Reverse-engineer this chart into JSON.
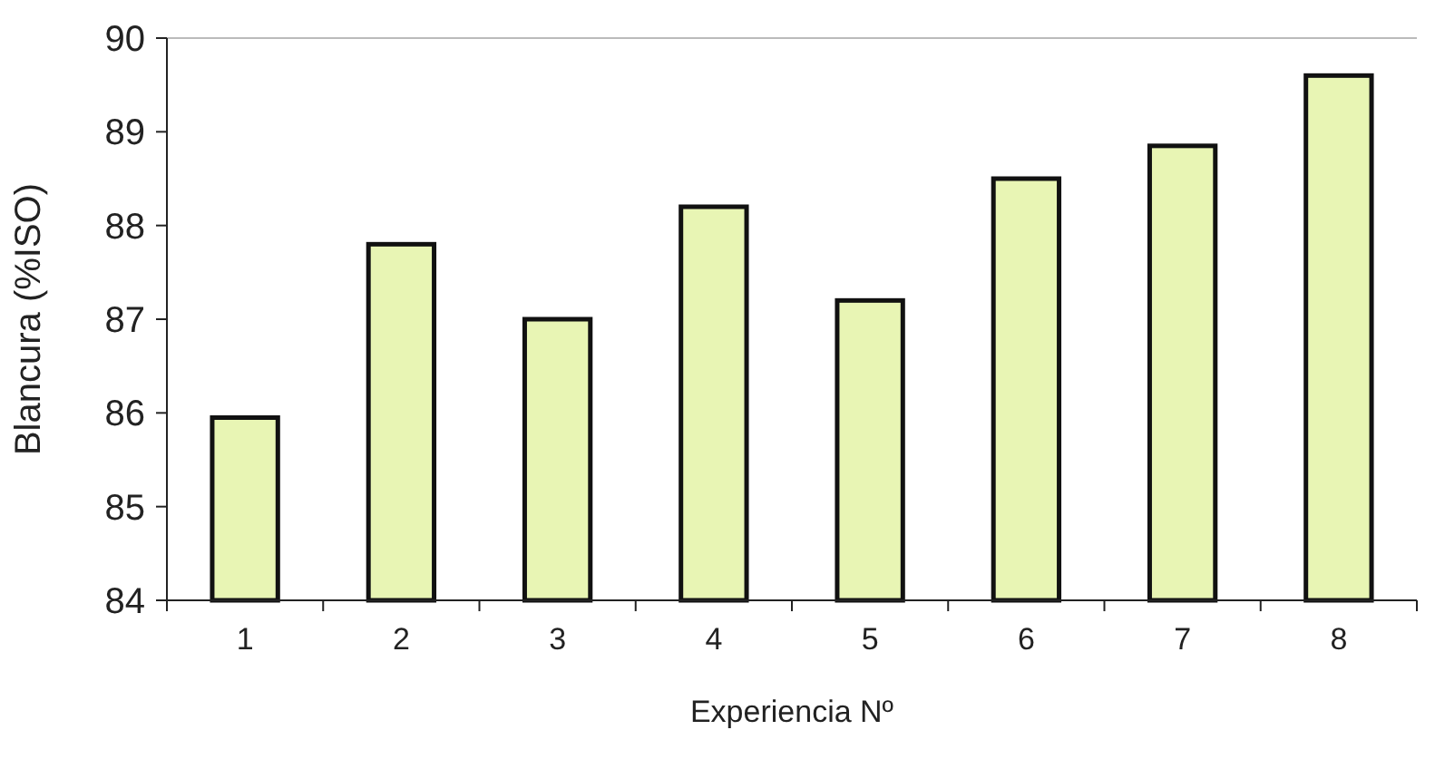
{
  "chart_data": {
    "type": "bar",
    "xlabel": "Experiencia Nº",
    "ylabel": "Blancura (%ISO)",
    "categories": [
      "1",
      "2",
      "3",
      "4",
      "5",
      "6",
      "7",
      "8"
    ],
    "values": [
      85.95,
      87.8,
      87.0,
      88.2,
      87.2,
      88.5,
      88.85,
      89.6
    ],
    "color": "#e8f5b4",
    "ylim": [
      84,
      90
    ],
    "yticks": [
      84,
      85,
      86,
      87,
      88,
      89,
      90
    ],
    "grid": false
  }
}
